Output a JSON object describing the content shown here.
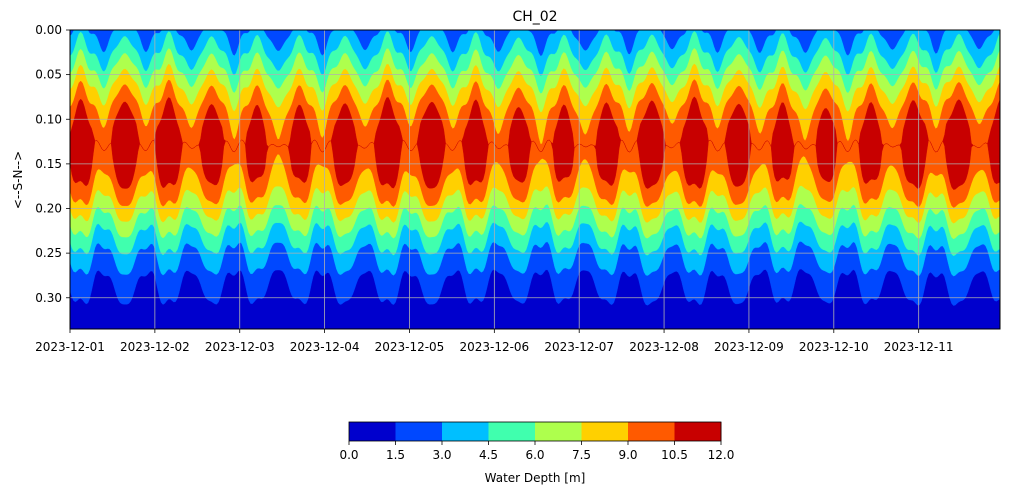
{
  "chart_data": {
    "type": "heatmap",
    "title": "CH_02",
    "xlabel": "",
    "ylabel": "<--S-N-->",
    "x_ticks": [
      "2023-12-01",
      "2023-12-02",
      "2023-12-03",
      "2023-12-04",
      "2023-12-05",
      "2023-12-06",
      "2023-12-07",
      "2023-12-08",
      "2023-12-09",
      "2023-12-10",
      "2023-12-11"
    ],
    "x_range": [
      "2023-12-01T00:00",
      "2023-12-11T23:00"
    ],
    "y_ticks": [
      "0.00",
      "0.05",
      "0.10",
      "0.15",
      "0.20",
      "0.25",
      "0.30"
    ],
    "y_range": [
      0.335,
      0.0
    ],
    "y_inverted": true,
    "grid": true,
    "tidal_period_hours": 12.4,
    "peak_depth_latitude": 0.13,
    "colorbar": {
      "label": "Water Depth [m]",
      "placement": "bottom",
      "ticks": [
        "0.0",
        "1.5",
        "3.0",
        "4.5",
        "6.0",
        "7.5",
        "9.0",
        "10.5",
        "12.0"
      ],
      "levels": [
        0,
        1.5,
        3.0,
        4.5,
        6.0,
        7.5,
        9.0,
        10.5,
        12.0
      ],
      "colors": [
        "#0000cd",
        "#0048ff",
        "#00bfff",
        "#40ffae",
        "#aeff4d",
        "#ffd000",
        "#ff5a00",
        "#c80000"
      ]
    }
  }
}
